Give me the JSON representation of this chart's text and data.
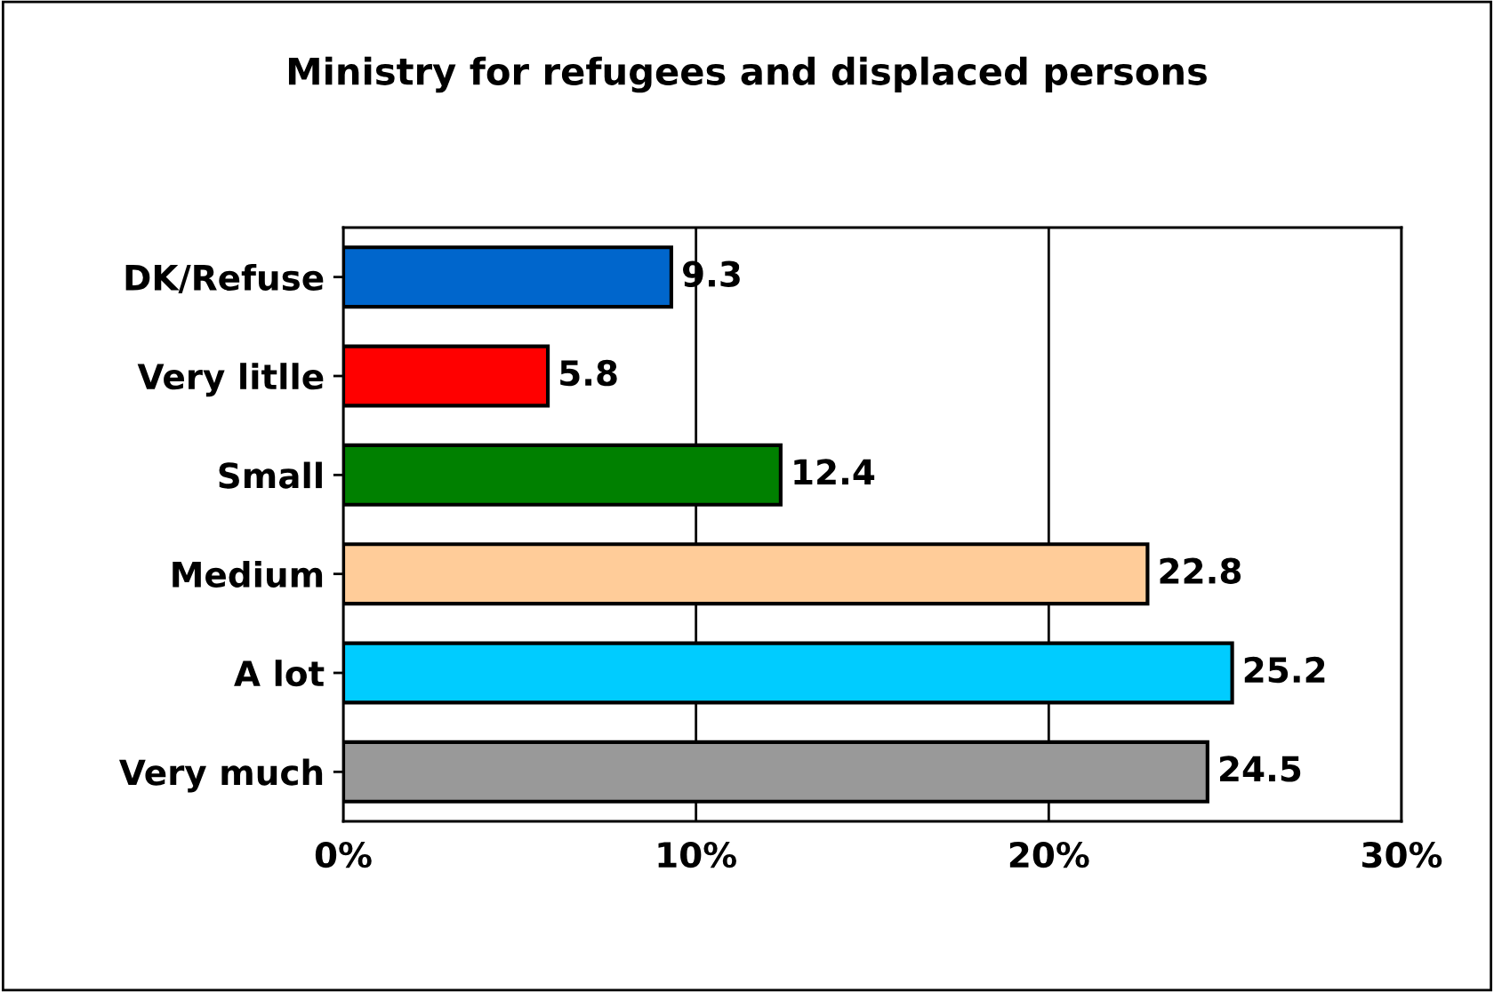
{
  "chart_data": {
    "type": "bar",
    "orientation": "horizontal",
    "title": "Ministry for refugees and displaced persons",
    "categories": [
      "DK/Refuse",
      "Very litlle",
      "Small",
      "Medium",
      "A lot",
      "Very much"
    ],
    "values": [
      9.3,
      5.8,
      12.4,
      22.8,
      25.2,
      24.5
    ],
    "colors": [
      "#0066cc",
      "#ff0000",
      "#008000",
      "#ffcc99",
      "#00ccff",
      "#999999"
    ],
    "xlim": [
      0,
      30
    ],
    "xticks": [
      {
        "value": 0,
        "label": "0%"
      },
      {
        "value": 10,
        "label": "10%"
      },
      {
        "value": 20,
        "label": "20%"
      },
      {
        "value": 30,
        "label": "30%"
      }
    ],
    "grid": "x",
    "data_labels": true,
    "legend": false
  }
}
